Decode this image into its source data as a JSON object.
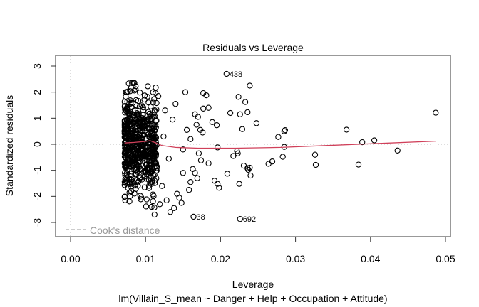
{
  "chart_data": {
    "type": "scatter",
    "title": "Residuals vs Leverage",
    "xlabel": "Leverage",
    "subtitle": "lm(Villain_S_mean ~ Danger + Help + Occupation + Attitude)",
    "ylabel": "Standardized residuals",
    "xlim": [
      0.0,
      0.05
    ],
    "ylim": [
      -3.3,
      3.3
    ],
    "x_ticks": [
      "0.00",
      "0.01",
      "0.02",
      "0.03",
      "0.04",
      "0.05"
    ],
    "x_tick_values": [
      0.0,
      0.01,
      0.02,
      0.03,
      0.04,
      0.05
    ],
    "y_ticks": [
      "-3",
      "-2",
      "-1",
      "0",
      "1",
      "2",
      "3"
    ],
    "y_tick_values": [
      -3,
      -2,
      -1,
      0,
      1,
      2,
      3
    ],
    "grid": false,
    "reference_lines": {
      "horizontal_zero": true,
      "vertical_zero": true,
      "style": "dotted",
      "color": "#bbbbbb"
    },
    "legend": {
      "entries": [
        {
          "label": "Cook's distance",
          "style": "dashed",
          "color": "#9a9a9a"
        }
      ],
      "position": "bottom-left"
    },
    "labeled_points": [
      {
        "label": "438",
        "x": 0.0208,
        "y": 2.7
      },
      {
        "label": "38",
        "x": 0.0164,
        "y": -2.78
      },
      {
        "label": "692",
        "x": 0.0226,
        "y": -2.87
      }
    ],
    "sparse_points": [
      [
        0.0487,
        1.21
      ],
      [
        0.0436,
        -0.24
      ],
      [
        0.0405,
        0.15
      ],
      [
        0.0389,
        0.08
      ],
      [
        0.0384,
        -0.78
      ],
      [
        0.0368,
        0.56
      ],
      [
        0.0326,
        -0.4
      ],
      [
        0.0327,
        -0.79
      ],
      [
        0.0286,
        0.54
      ],
      [
        0.0285,
        0.5
      ],
      [
        0.0285,
        -0.1
      ],
      [
        0.0283,
        -0.48
      ],
      [
        0.0277,
        0.28
      ],
      [
        0.0269,
        -0.66
      ],
      [
        0.0264,
        -0.75
      ],
      [
        0.0248,
        0.81
      ],
      [
        0.024,
        -1.2
      ],
      [
        0.0237,
        -0.98
      ],
      [
        0.0236,
        -0.92
      ],
      [
        0.0239,
        -0.9
      ],
      [
        0.0231,
        -0.82
      ],
      [
        0.0225,
        -1.52
      ],
      [
        0.0229,
        0.58
      ],
      [
        0.0236,
        1.23
      ],
      [
        0.0233,
        1.62
      ],
      [
        0.0239,
        2.25
      ],
      [
        0.0224,
        1.82
      ],
      [
        0.0226,
        1.15
      ],
      [
        0.0213,
        1.2
      ],
      [
        0.0223,
        -0.35
      ],
      [
        0.0222,
        -0.26
      ],
      [
        0.0217,
        -0.45
      ],
      [
        0.0209,
        -1.13
      ],
      [
        0.0196,
        -0.12
      ],
      [
        0.0195,
        0.73
      ],
      [
        0.0196,
        -1.52
      ],
      [
        0.0198,
        -1.67
      ],
      [
        0.0192,
        -1.4
      ],
      [
        0.0189,
        0.85
      ],
      [
        0.0184,
        1.4
      ],
      [
        0.0184,
        -0.73
      ],
      [
        0.0177,
        1.96
      ],
      [
        0.0181,
        1.88
      ],
      [
        0.0177,
        1.37
      ],
      [
        0.0173,
        0.55
      ],
      [
        0.0176,
        0.45
      ],
      [
        0.017,
        1.05
      ],
      [
        0.0166,
        1.15
      ],
      [
        0.0168,
        0.75
      ],
      [
        0.0171,
        -0.35
      ],
      [
        0.0174,
        -0.62
      ],
      [
        0.0166,
        -1.1
      ],
      [
        0.0163,
        -0.95
      ],
      [
        0.0169,
        -1.3
      ],
      [
        0.016,
        -1.45
      ],
      [
        0.0158,
        -1.75
      ],
      [
        0.0153,
        2.0
      ],
      [
        0.016,
        0.2
      ],
      [
        0.0155,
        0.55
      ],
      [
        0.015,
        -0.2
      ],
      [
        0.0148,
        -2.25
      ],
      [
        0.0145,
        -2.05
      ],
      [
        0.015,
        -1.1
      ],
      [
        0.0142,
        -1.9
      ],
      [
        0.014,
        1.55
      ],
      [
        0.0138,
        -2.45
      ],
      [
        0.0136,
        0.95
      ],
      [
        0.0133,
        -2.6
      ],
      [
        0.0131,
        -0.55
      ],
      [
        0.0128,
        -2.15
      ],
      [
        0.0126,
        1.3
      ],
      [
        0.0124,
        0.3
      ],
      [
        0.0122,
        -1.6
      ],
      [
        0.0119,
        -2.3
      ],
      [
        0.0117,
        1.85
      ],
      [
        0.0115,
        -0.85
      ],
      [
        0.0112,
        -2.7
      ],
      [
        0.011,
        2.0
      ],
      [
        0.0108,
        -2.4
      ],
      [
        0.0104,
        1.6
      ]
    ],
    "dense_cluster": {
      "description": "Several hundred observations concentrated at leverage 0.0072 to 0.0115 with standardized residuals spanning about -2.8 to 2.35",
      "leverage_range": [
        0.0072,
        0.0115
      ],
      "residual_range": [
        -2.8,
        2.35
      ],
      "count_approx": 620
    },
    "smoother": {
      "color": "#d0405a",
      "points": [
        [
          0.0072,
          0.05
        ],
        [
          0.0085,
          0.07
        ],
        [
          0.01,
          0.11
        ],
        [
          0.0106,
          0.14
        ],
        [
          0.0112,
          0.07
        ],
        [
          0.0122,
          -0.05
        ],
        [
          0.014,
          -0.12
        ],
        [
          0.017,
          -0.15
        ],
        [
          0.022,
          -0.15
        ],
        [
          0.028,
          -0.12
        ],
        [
          0.034,
          -0.05
        ],
        [
          0.04,
          0.02
        ],
        [
          0.0487,
          0.12
        ]
      ]
    }
  }
}
